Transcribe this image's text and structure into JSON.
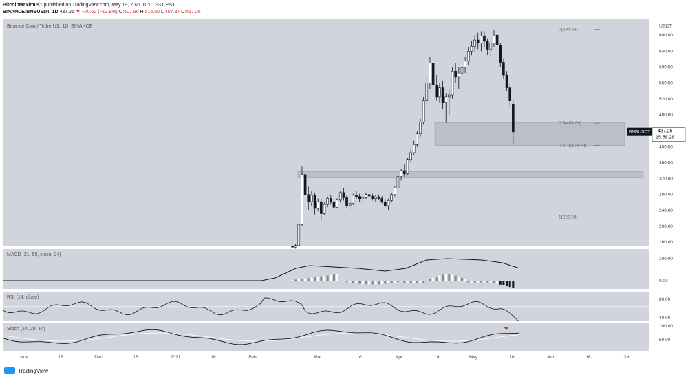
{
  "header": {
    "author": "BitcoinMaximus1",
    "published": "published on TradingView.com, May 19, 2021 10:01:33 CEST",
    "symbol": "BINANCE:BNBUSDT, 1D",
    "last": "437.26",
    "arrow": "▼",
    "change": "−70.62 (−13.9%)",
    "o_label": "O:",
    "o": "507.90",
    "h_label": "H:",
    "h": "516.50",
    "l_label": "L:",
    "l": "407.37",
    "c_label": "C:",
    "c": "437.26"
  },
  "footer": {
    "brand": "TradingView"
  },
  "colors": {
    "pane_bg": "#d1d4dc",
    "candle": "#131722",
    "zone": "#b8bac4",
    "price_label": "#131722"
  },
  "chart_data": {
    "type": "candlestick",
    "title": "Binance Coin / TetherUS, 1D, BINANCE",
    "currency": "USDT",
    "x_labels": [
      "Nov",
      "16",
      "Dec",
      "16",
      "2021",
      "16",
      "Feb",
      "Mar",
      "16",
      "Apr",
      "16",
      "May",
      "16",
      "Jun",
      "16",
      "Jul"
    ],
    "y_ticks": [
      "680.00",
      "640.00",
      "600.00",
      "560.00",
      "520.00",
      "480.00",
      "440.00",
      "400.00",
      "360.00",
      "320.00",
      "280.00",
      "240.00",
      "200.00",
      "160.00"
    ],
    "ylim": [
      150,
      720
    ],
    "price_label": {
      "symbol": "BNBUSDT",
      "price": "437.26",
      "timer": "15:58:28"
    },
    "candles": [
      [
        150,
        152,
        146,
        148
      ],
      [
        148,
        155,
        144,
        152
      ],
      [
        152,
        210,
        150,
        205
      ],
      [
        205,
        350,
        200,
        330
      ],
      [
        330,
        345,
        260,
        280
      ],
      [
        280,
        300,
        240,
        262
      ],
      [
        262,
        290,
        250,
        278
      ],
      [
        278,
        285,
        230,
        245
      ],
      [
        245,
        270,
        238,
        262
      ],
      [
        262,
        268,
        215,
        232
      ],
      [
        232,
        260,
        228,
        255
      ],
      [
        255,
        275,
        248,
        270
      ],
      [
        270,
        278,
        255,
        262
      ],
      [
        262,
        268,
        240,
        248
      ],
      [
        248,
        270,
        245,
        266
      ],
      [
        266,
        290,
        260,
        285
      ],
      [
        285,
        295,
        265,
        272
      ],
      [
        272,
        280,
        245,
        252
      ],
      [
        252,
        265,
        240,
        258
      ],
      [
        258,
        282,
        254,
        278
      ],
      [
        278,
        290,
        268,
        275
      ],
      [
        275,
        282,
        262,
        268
      ],
      [
        268,
        278,
        260,
        272
      ],
      [
        272,
        285,
        268,
        280
      ],
      [
        280,
        288,
        270,
        276
      ],
      [
        276,
        282,
        265,
        270
      ],
      [
        270,
        278,
        262,
        274
      ],
      [
        274,
        280,
        266,
        270
      ],
      [
        270,
        276,
        258,
        262
      ],
      [
        262,
        268,
        248,
        252
      ],
      [
        252,
        270,
        240,
        265
      ],
      [
        265,
        285,
        260,
        280
      ],
      [
        280,
        300,
        275,
        296
      ],
      [
        296,
        330,
        290,
        325
      ],
      [
        325,
        345,
        315,
        340
      ],
      [
        340,
        355,
        325,
        332
      ],
      [
        332,
        372,
        328,
        368
      ],
      [
        368,
        392,
        360,
        385
      ],
      [
        385,
        415,
        380,
        405
      ],
      [
        405,
        440,
        400,
        432
      ],
      [
        432,
        470,
        425,
        462
      ],
      [
        462,
        525,
        455,
        515
      ],
      [
        515,
        575,
        505,
        560
      ],
      [
        560,
        625,
        545,
        610
      ],
      [
        610,
        618,
        540,
        555
      ],
      [
        555,
        580,
        515,
        525
      ],
      [
        525,
        560,
        510,
        548
      ],
      [
        548,
        565,
        495,
        510
      ],
      [
        510,
        535,
        460,
        525
      ],
      [
        525,
        545,
        480,
        530
      ],
      [
        530,
        600,
        520,
        590
      ],
      [
        590,
        610,
        560,
        575
      ],
      [
        575,
        600,
        545,
        585
      ],
      [
        585,
        608,
        570,
        598
      ],
      [
        598,
        625,
        585,
        615
      ],
      [
        615,
        650,
        605,
        640
      ],
      [
        640,
        665,
        630,
        652
      ],
      [
        652,
        680,
        640,
        668
      ],
      [
        668,
        686,
        645,
        660
      ],
      [
        660,
        690,
        640,
        678
      ],
      [
        678,
        690,
        650,
        665
      ],
      [
        665,
        672,
        630,
        645
      ],
      [
        645,
        668,
        625,
        660
      ],
      [
        660,
        694,
        650,
        680
      ],
      [
        680,
        688,
        640,
        655
      ],
      [
        655,
        660,
        600,
        612
      ],
      [
        612,
        620,
        570,
        580
      ],
      [
        580,
        590,
        540,
        548
      ],
      [
        548,
        560,
        500,
        515
      ],
      [
        507,
        516,
        407,
        437
      ]
    ],
    "fib_levels": [
      {
        "label": "0(694.53)",
        "value": 694.53
      },
      {
        "label": "0.5(458.89)",
        "value": 458.89
      },
      {
        "label": "0.618(403.28)",
        "value": 403.28
      },
      {
        "label": "1(223.24)",
        "value": 223.24
      }
    ],
    "zones": [
      {
        "from": 403,
        "to": 460
      },
      {
        "from": 322,
        "to": 338
      }
    ],
    "macd": {
      "label": "MACD (21, 50, close, 24)",
      "y_ticks": [
        "100.00",
        "0.00"
      ]
    },
    "rsi": {
      "label": "RSI (14, close)",
      "y_ticks": [
        "80.00",
        "40.00"
      ]
    },
    "stoch": {
      "label": "Stoch (14, 28, 14)",
      "y_ticks": [
        "100.00",
        "50.00"
      ]
    }
  }
}
